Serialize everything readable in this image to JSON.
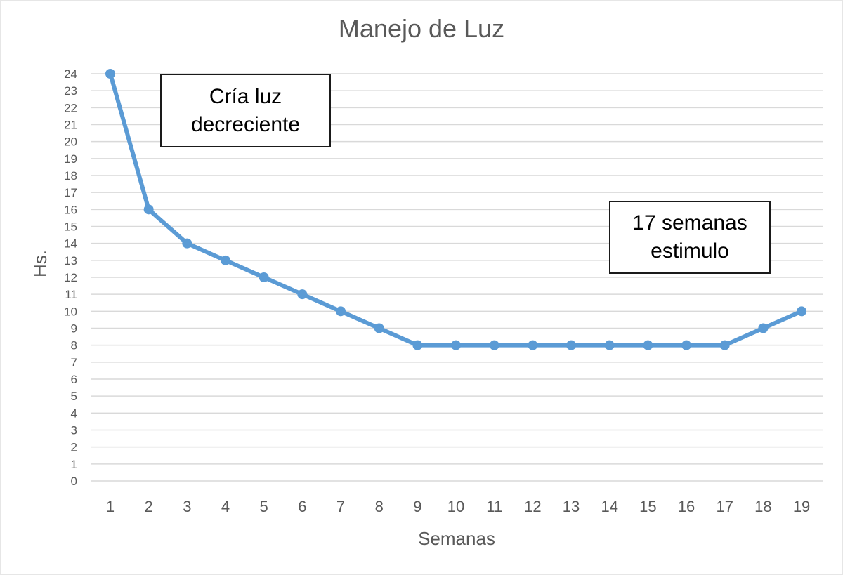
{
  "chart_data": {
    "type": "line",
    "title": "Manejo de Luz",
    "xlabel": "Semanas",
    "ylabel": "Hs.",
    "x": [
      1,
      2,
      3,
      4,
      5,
      6,
      7,
      8,
      9,
      10,
      11,
      12,
      13,
      14,
      15,
      16,
      17,
      18,
      19
    ],
    "series": [
      {
        "values": [
          24,
          16,
          14,
          13,
          12,
          11,
          10,
          9,
          8,
          8,
          8,
          8,
          8,
          8,
          8,
          8,
          8,
          9,
          10
        ]
      }
    ],
    "ylim": [
      0,
      24
    ],
    "yticks": [
      0,
      1,
      2,
      3,
      4,
      5,
      6,
      7,
      8,
      9,
      10,
      11,
      12,
      13,
      14,
      15,
      16,
      17,
      18,
      19,
      20,
      21,
      22,
      23,
      24
    ],
    "grid": true,
    "line_color": "#5b9bd5",
    "annotations": [
      {
        "lines": [
          "Cría luz",
          "decreciente"
        ]
      },
      {
        "lines": [
          "17 semanas",
          "estimulo"
        ]
      }
    ]
  }
}
